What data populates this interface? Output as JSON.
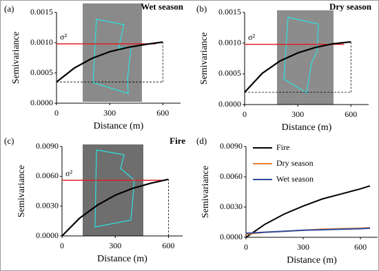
{
  "chart_data": [
    {
      "type": "line",
      "panel_label": "(a)",
      "title": "Wet season",
      "x_label": "Distance (m)",
      "y_label": "Semivariance",
      "x": [
        0,
        100,
        200,
        300,
        400,
        500,
        600
      ],
      "values": [
        0.00035,
        0.00058,
        0.00074,
        0.00085,
        0.00092,
        0.00097,
        0.00101
      ],
      "color": "#000000",
      "sill": 0.00098,
      "sill_label": "σ²",
      "sill_color": "#e02020",
      "nugget": 0.00035,
      "xlim": [
        0,
        700
      ],
      "xticks": [
        0,
        300,
        600
      ],
      "ylim": [
        0,
        0.0015
      ],
      "yticks": [
        {
          "value": 0,
          "label": "0.0000"
        },
        {
          "value": 0.0005,
          "label": "0.0005"
        },
        {
          "value": 0.001,
          "label": "0.0010"
        },
        {
          "value": 0.0015,
          "label": "0.0015"
        }
      ]
    },
    {
      "type": "line",
      "panel_label": "(b)",
      "title": "Dry season",
      "x_label": "Distance (m)",
      "y_label": "Semivariance",
      "x": [
        0,
        100,
        200,
        300,
        400,
        500,
        600
      ],
      "values": [
        0.0002,
        0.00051,
        0.00071,
        0.00084,
        0.00093,
        0.00099,
        0.00102
      ],
      "color": "#000000",
      "sill": 0.00098,
      "sill_label": "σ²",
      "sill_color": "#e02020",
      "nugget": 0.0002,
      "xlim": [
        0,
        700
      ],
      "xticks": [
        0,
        300,
        600
      ],
      "ylim": [
        0,
        0.0015
      ],
      "yticks": [
        {
          "value": 0,
          "label": "0.0000"
        },
        {
          "value": 0.0005,
          "label": "0.0005"
        },
        {
          "value": 0.001,
          "label": "0.0010"
        },
        {
          "value": 0.0015,
          "label": "0.0015"
        }
      ]
    },
    {
      "type": "line",
      "panel_label": "(c)",
      "title": "Fire",
      "x_label": "Distance (m)",
      "y_label": "Semivariance",
      "x": [
        0,
        100,
        200,
        300,
        400,
        500,
        600
      ],
      "values": [
        0,
        0.0018,
        0.0031,
        0.0041,
        0.0048,
        0.0053,
        0.0057
      ],
      "color": "#000000",
      "sill": 0.0056,
      "sill_label": "σ²",
      "sill_color": "#e02020",
      "nugget": 0,
      "xlim": [
        0,
        680
      ],
      "xticks": [
        0,
        300,
        600
      ],
      "ylim": [
        0,
        0.009
      ],
      "yticks": [
        {
          "value": 0,
          "label": "0.0000"
        },
        {
          "value": 0.003,
          "label": "0.0030"
        },
        {
          "value": 0.006,
          "label": "0.0060"
        },
        {
          "value": 0.009,
          "label": "0.0090"
        }
      ]
    },
    {
      "type": "multiline",
      "panel_label": "(d)",
      "x_label": "Distance (m)",
      "y_label": "Semivariance",
      "legend": "upper-left",
      "x": [
        0,
        100,
        200,
        300,
        400,
        500,
        600,
        650
      ],
      "series": [
        {
          "name": "Fire",
          "color": "#000000",
          "values": [
            0,
            0.0013,
            0.0023,
            0.0031,
            0.0038,
            0.0043,
            0.0048,
            0.0051
          ]
        },
        {
          "name": "Dry season",
          "color": "#ed7d31",
          "values": [
            0.0003,
            0.0005,
            0.0006,
            0.0007,
            0.0008,
            0.00085,
            0.0009,
            0.00095
          ]
        },
        {
          "name": "Wet season",
          "color": "#2f4b9b",
          "values": [
            0.0004,
            0.0005,
            0.0006,
            0.0007,
            0.00075,
            0.0008,
            0.00085,
            0.0009
          ]
        }
      ],
      "xlim": [
        0,
        690
      ],
      "xticks": [
        0,
        300,
        600
      ],
      "ylim": [
        0,
        0.009
      ],
      "yticks": [
        {
          "value": 0,
          "label": "0.0000"
        },
        {
          "value": 0.003,
          "label": "0.0030"
        },
        {
          "value": 0.006,
          "label": "0.0060"
        },
        {
          "value": 0.009,
          "label": "0.0090"
        }
      ]
    }
  ]
}
